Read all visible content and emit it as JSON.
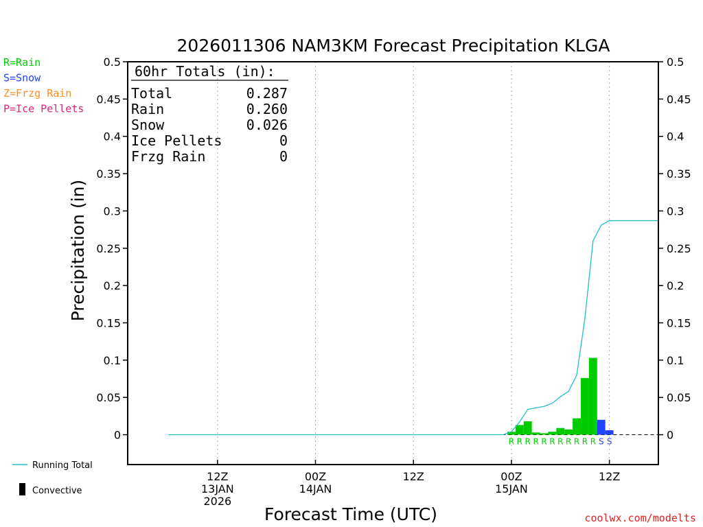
{
  "title": "2026011306 NAM3KM Forecast Precipitation KLGA",
  "ylabel": "Precipitation (in)",
  "xlabel": "Forecast Time (UTC)",
  "watermark": "coolwx.com/modelts",
  "key": [
    {
      "text": "R=Rain",
      "color": "#00cc00"
    },
    {
      "text": "S=Snow",
      "color": "#2244ff"
    },
    {
      "text": "Z=Frzg Rain",
      "color": "#ff8c1a"
    },
    {
      "text": "P=Ice Pellets",
      "color": "#e0207a"
    }
  ],
  "bottom_legend": {
    "running_total": "Running Total",
    "convective": "Convective",
    "running_total_color": "#20c0c8"
  },
  "totals": {
    "header": "60hr Totals (in):",
    "rows": [
      {
        "label": "Total",
        "value": "0.287"
      },
      {
        "label": "Rain",
        "value": "0.260"
      },
      {
        "label": "Snow",
        "value": "0.026"
      },
      {
        "label": "Ice Pellets",
        "value": "0"
      },
      {
        "label": "Frzg Rain",
        "value": "0"
      }
    ]
  },
  "chart_data": {
    "type": "bar",
    "ylim": [
      -0.04,
      0.5
    ],
    "yticks": [
      "0",
      "0.05",
      "0.1",
      "0.15",
      "0.2",
      "0.25",
      "0.3",
      "0.35",
      "0.4",
      "0.45",
      "0.5"
    ],
    "ytick_values": [
      0,
      0.05,
      0.1,
      0.15,
      0.2,
      0.25,
      0.3,
      0.35,
      0.4,
      0.45,
      0.5
    ],
    "x_unit": "forecast hour",
    "xlim": [
      -5,
      60
    ],
    "xticks": [
      {
        "hour": 6,
        "lines": [
          "12Z",
          "13JAN",
          "2026"
        ]
      },
      {
        "hour": 18,
        "lines": [
          "00Z",
          "14JAN"
        ]
      },
      {
        "hour": 30,
        "lines": [
          "12Z"
        ]
      },
      {
        "hour": 42,
        "lines": [
          "00Z",
          "15JAN"
        ]
      },
      {
        "hour": 54,
        "lines": [
          "12Z"
        ]
      }
    ],
    "series": [
      {
        "name": "Rain",
        "color": "#00cc00",
        "points": [
          {
            "hour": 42,
            "value": 0.004
          },
          {
            "hour": 43,
            "value": 0.013
          },
          {
            "hour": 44,
            "value": 0.018
          },
          {
            "hour": 45,
            "value": 0.003
          },
          {
            "hour": 46,
            "value": 0.002
          },
          {
            "hour": 47,
            "value": 0.004
          },
          {
            "hour": 48,
            "value": 0.009
          },
          {
            "hour": 49,
            "value": 0.007
          },
          {
            "hour": 50,
            "value": 0.022
          },
          {
            "hour": 51,
            "value": 0.076
          },
          {
            "hour": 52,
            "value": 0.103
          }
        ]
      },
      {
        "name": "Snow",
        "color": "#2244ff",
        "points": [
          {
            "hour": 53,
            "value": 0.02
          },
          {
            "hour": 54,
            "value": 0.006
          }
        ]
      }
    ],
    "ptype_markers": [
      {
        "hour": 42,
        "text": "R",
        "color": "#00cc00"
      },
      {
        "hour": 43,
        "text": "R",
        "color": "#00cc00"
      },
      {
        "hour": 44,
        "text": "R",
        "color": "#00cc00"
      },
      {
        "hour": 45,
        "text": "R",
        "color": "#00cc00"
      },
      {
        "hour": 46,
        "text": "R",
        "color": "#00cc00"
      },
      {
        "hour": 47,
        "text": "R",
        "color": "#00cc00"
      },
      {
        "hour": 48,
        "text": "R",
        "color": "#00cc00"
      },
      {
        "hour": 49,
        "text": "R",
        "color": "#00cc00"
      },
      {
        "hour": 50,
        "text": "R",
        "color": "#00cc00"
      },
      {
        "hour": 51,
        "text": "R",
        "color": "#00cc00"
      },
      {
        "hour": 52,
        "text": "R",
        "color": "#00cc00"
      },
      {
        "hour": 53,
        "text": "S",
        "color": "#2244ff"
      },
      {
        "hour": 54,
        "text": "S",
        "color": "#2244ff"
      }
    ],
    "running_total": {
      "name": "Running Total",
      "color": "#20c0c8",
      "points": [
        [
          0,
          0
        ],
        [
          41,
          0
        ],
        [
          42,
          0.004
        ],
        [
          43,
          0.017
        ],
        [
          44,
          0.034
        ],
        [
          45,
          0.036
        ],
        [
          46,
          0.038
        ],
        [
          47,
          0.042
        ],
        [
          48,
          0.051
        ],
        [
          49,
          0.058
        ],
        [
          50,
          0.08
        ],
        [
          51,
          0.156
        ],
        [
          52,
          0.26
        ],
        [
          53,
          0.281
        ],
        [
          54,
          0.287
        ],
        [
          60,
          0.287
        ]
      ]
    }
  }
}
